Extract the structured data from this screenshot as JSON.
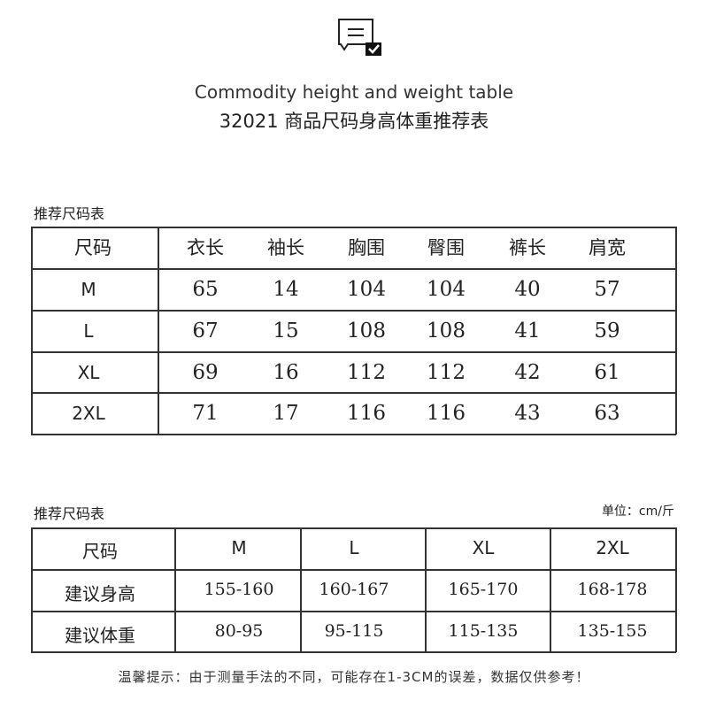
{
  "header": {
    "icon": "chat-checked-icon",
    "title_en": "Commodity height and weight table",
    "title_cn": "32021 商品尺码身高体重推荐表"
  },
  "table1": {
    "caption": "推荐尺码表",
    "columns": [
      "尺码",
      "衣长",
      "袖长",
      "胸围",
      "臀围",
      "裤长",
      "肩宽"
    ],
    "rows": [
      [
        "M",
        "65",
        "14",
        "104",
        "104",
        "40",
        "57"
      ],
      [
        "L",
        "67",
        "15",
        "108",
        "108",
        "41",
        "59"
      ],
      [
        "XL",
        "69",
        "16",
        "112",
        "112",
        "42",
        "61"
      ],
      [
        "2XL",
        "71",
        "17",
        "116",
        "116",
        "43",
        "63"
      ]
    ]
  },
  "table2": {
    "caption": "推荐尺码表",
    "unit": "单位：cm/斤",
    "columns": [
      "尺码",
      "M",
      "L",
      "XL",
      "2XL"
    ],
    "rows": [
      [
        "建议身高",
        "155-160",
        "160-167",
        "165-170",
        "168-178"
      ],
      [
        "建议体重",
        "80-95",
        "95-115",
        "115-135",
        "135-155"
      ]
    ]
  },
  "note": "温馨提示：由于测量手法的不同，可能存在1-3CM的误差，数据仅供参考！"
}
